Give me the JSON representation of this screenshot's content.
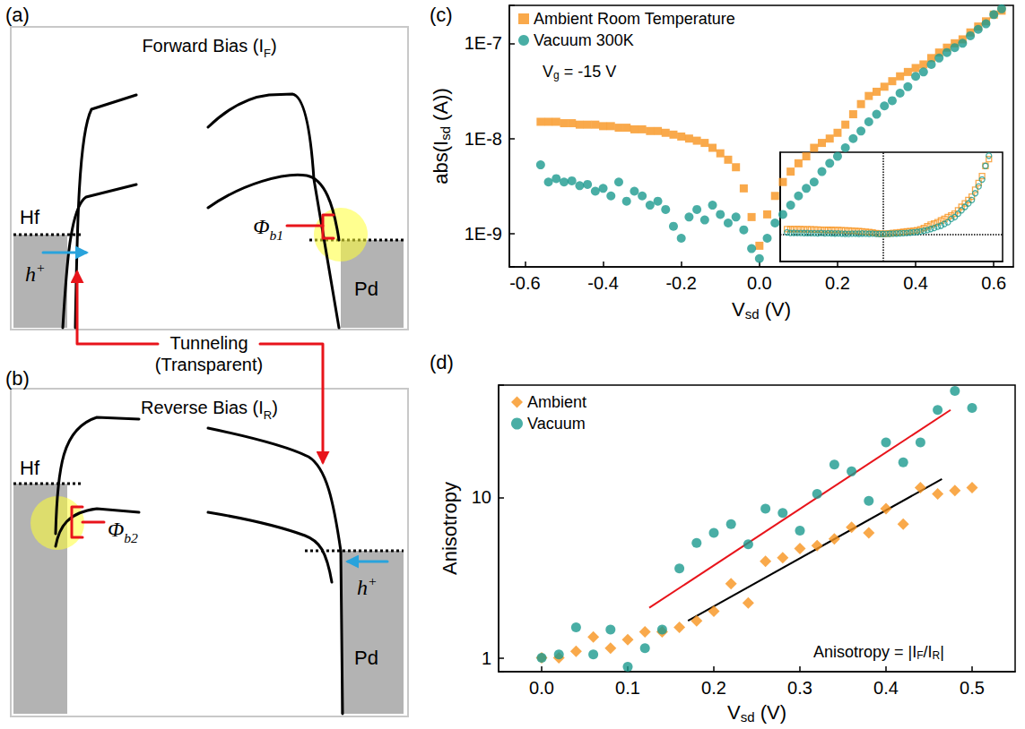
{
  "diagram": {
    "panels": [
      {
        "letter": "(a)",
        "title": [
          "Forward Bias (I",
          {
            "sub": "F"
          },
          ")"
        ],
        "left_metal": "Hf",
        "right_metal": "Pd",
        "carrier": [
          "h",
          {
            "sup": "+"
          }
        ],
        "barrier": [
          "Φ",
          {
            "sub": "b1"
          }
        ]
      },
      {
        "letter": "(b)",
        "title": [
          "Reverse Bias (I",
          {
            "sub": "R"
          },
          ")"
        ],
        "left_metal": "Hf",
        "right_metal": "Pd",
        "carrier": [
          "h",
          {
            "sup": "+"
          }
        ],
        "barrier": [
          "Φ",
          {
            "sub": "b2"
          }
        ]
      }
    ],
    "callout": [
      "Tunneling",
      "(Transparent)"
    ]
  },
  "chart_data": [
    {
      "panel": "(c)",
      "type": "scatter",
      "xlabel": [
        "V",
        {
          "sub": "sd"
        },
        " (V)"
      ],
      "ylabel": [
        "abs(I",
        {
          "sub": "sd"
        },
        " (A))"
      ],
      "annotations": [
        {
          "text": [
            "V",
            {
              "sub": "g"
            },
            " = -15 V"
          ]
        }
      ],
      "x": [
        -0.56,
        -0.54,
        -0.52,
        -0.5,
        -0.48,
        -0.46,
        -0.44,
        -0.42,
        -0.4,
        -0.38,
        -0.36,
        -0.34,
        -0.32,
        -0.3,
        -0.28,
        -0.26,
        -0.24,
        -0.22,
        -0.2,
        -0.18,
        -0.16,
        -0.14,
        -0.12,
        -0.1,
        -0.08,
        -0.06,
        -0.04,
        -0.02,
        0,
        0.02,
        0.04,
        0.06,
        0.08,
        0.1,
        0.12,
        0.14,
        0.16,
        0.18,
        0.2,
        0.22,
        0.24,
        0.26,
        0.28,
        0.3,
        0.32,
        0.34,
        0.36,
        0.38,
        0.4,
        0.42,
        0.44,
        0.46,
        0.48,
        0.5,
        0.52,
        0.54,
        0.56,
        0.58,
        0.6,
        0.62
      ],
      "series": [
        {
          "name": "Ambient Room Temperature",
          "color": "#f7931e",
          "marker": "square",
          "values": [
            1.5e-08,
            1.5e-08,
            1.5e-08,
            1.45e-08,
            1.45e-08,
            1.4e-08,
            1.4e-08,
            1.4e-08,
            1.35e-08,
            1.35e-08,
            1.3e-08,
            1.3e-08,
            1.25e-08,
            1.25e-08,
            1.2e-08,
            1.2e-08,
            1.15e-08,
            1.1e-08,
            1.05e-08,
            1e-08,
            9.5e-09,
            9e-09,
            8e-09,
            7e-09,
            6e-09,
            5e-09,
            3e-09,
            1.5e-09,
            7.5e-10,
            1.6e-09,
            2.5e-09,
            3.5e-09,
            4.5e-09,
            5.5e-09,
            6.5e-09,
            8e-09,
            9e-09,
            1e-08,
            1.15e-08,
            1.4e-08,
            1.8e-08,
            2.3e-08,
            2.8e-08,
            3.1e-08,
            3.5e-08,
            4e-08,
            4.5e-08,
            5e-08,
            5.5e-08,
            6e-08,
            7e-08,
            8e-08,
            9e-08,
            1e-07,
            1.1e-07,
            1.3e-07,
            1.5e-07,
            1.7e-07,
            2e-07,
            2.2e-07
          ]
        },
        {
          "name": "Vacuum 300K",
          "color": "#1b9a8e",
          "marker": "circle",
          "values": [
            5.3e-09,
            3.5e-09,
            3.8e-09,
            3.5e-09,
            3.6e-09,
            3.2e-09,
            3.3e-09,
            2.8e-09,
            3e-09,
            2.5e-09,
            3.5e-09,
            2.2e-09,
            2.8e-09,
            2.5e-09,
            2e-09,
            2.2e-09,
            1.8e-09,
            1.2e-09,
            9e-10,
            1.5e-09,
            1.8e-09,
            1.4e-09,
            2e-09,
            1.6e-09,
            1.3e-09,
            1.5e-09,
            1.1e-09,
            7e-10,
            5.5e-10,
            9e-10,
            1.3e-09,
            1.6e-09,
            2e-09,
            2.5e-09,
            3e-09,
            3.5e-09,
            4.5e-09,
            5.5e-09,
            6.5e-09,
            8e-09,
            1e-08,
            1.2e-08,
            1.5e-08,
            1.8e-08,
            2.2e-08,
            2.5e-08,
            3e-08,
            3.5e-08,
            4.5e-08,
            5e-08,
            6e-08,
            7e-08,
            8e-08,
            9e-08,
            1e-07,
            1.2e-07,
            1.4e-07,
            1.6e-07,
            2e-07,
            2.3e-07
          ]
        }
      ],
      "xlim": [
        -0.64,
        0.65
      ],
      "xticks": [
        -0.6,
        -0.4,
        -0.2,
        {
          "value": 0,
          "label": "0.0"
        },
        0.2,
        0.4,
        0.6
      ],
      "ylim": [
        4.5e-10,
        2.5e-07
      ],
      "yticks": [
        {
          "value": 1e-09,
          "label": "1E-9"
        },
        {
          "value": 1e-08,
          "label": "1E-8"
        },
        {
          "value": 1e-07,
          "label": "1E-7"
        }
      ],
      "log": "y",
      "grid": false,
      "legend": "upper left"
    },
    {
      "type": "scatter",
      "x": [
        -0.56,
        -0.54,
        -0.52,
        -0.5,
        -0.48,
        -0.46,
        -0.44,
        -0.42,
        -0.4,
        -0.38,
        -0.36,
        -0.34,
        -0.32,
        -0.3,
        -0.28,
        -0.26,
        -0.24,
        -0.22,
        -0.2,
        -0.18,
        -0.16,
        -0.14,
        -0.12,
        -0.1,
        -0.08,
        -0.06,
        -0.04,
        -0.02,
        0,
        0.02,
        0.04,
        0.06,
        0.08,
        0.1,
        0.12,
        0.14,
        0.16,
        0.18,
        0.2,
        0.22,
        0.24,
        0.26,
        0.28,
        0.3,
        0.32,
        0.34,
        0.36,
        0.38,
        0.4,
        0.42,
        0.44,
        0.46,
        0.48,
        0.5,
        0.52,
        0.54,
        0.56,
        0.58,
        0.6,
        0.62
      ],
      "series": [
        {
          "color": "#f7931e",
          "marker": "open_square",
          "values": [
            1.5e-08,
            1.5e-08,
            1.5e-08,
            1.45e-08,
            1.45e-08,
            1.4e-08,
            1.4e-08,
            1.4e-08,
            1.35e-08,
            1.35e-08,
            1.3e-08,
            1.3e-08,
            1.25e-08,
            1.25e-08,
            1.2e-08,
            1.2e-08,
            1.15e-08,
            1.1e-08,
            1.05e-08,
            1e-08,
            9.5e-09,
            9e-09,
            8e-09,
            7e-09,
            6e-09,
            5e-09,
            3e-09,
            1.5e-09,
            7.5e-10,
            1.6e-09,
            2.5e-09,
            3.5e-09,
            4.5e-09,
            5.5e-09,
            6.5e-09,
            8e-09,
            9e-09,
            1e-08,
            1.15e-08,
            1.4e-08,
            1.8e-08,
            2.3e-08,
            2.8e-08,
            3.1e-08,
            3.5e-08,
            4e-08,
            4.5e-08,
            5e-08,
            5.5e-08,
            6e-08,
            7e-08,
            8e-08,
            9e-08,
            1e-07,
            1.1e-07,
            1.3e-07,
            1.5e-07,
            1.7e-07,
            2e-07,
            2.2e-07
          ]
        },
        {
          "color": "#1b9a8e",
          "marker": "open_circle",
          "values": [
            5.3e-09,
            3.5e-09,
            3.8e-09,
            3.5e-09,
            3.6e-09,
            3.2e-09,
            3.3e-09,
            2.8e-09,
            3e-09,
            2.5e-09,
            3.5e-09,
            2.2e-09,
            2.8e-09,
            2.5e-09,
            2e-09,
            2.2e-09,
            1.8e-09,
            1.2e-09,
            9e-10,
            1.5e-09,
            1.8e-09,
            1.4e-09,
            2e-09,
            1.6e-09,
            1.3e-09,
            1.5e-09,
            1.1e-09,
            7e-10,
            5.5e-10,
            9e-10,
            1.3e-09,
            1.6e-09,
            2e-09,
            2.5e-09,
            3e-09,
            3.5e-09,
            4.5e-09,
            5.5e-09,
            6.5e-09,
            8e-09,
            1e-08,
            1.2e-08,
            1.5e-08,
            1.8e-08,
            2.2e-08,
            2.5e-08,
            3e-08,
            3.5e-08,
            4.5e-08,
            5e-08,
            6e-08,
            7e-08,
            8e-08,
            9e-08,
            1e-07,
            1.2e-07,
            1.4e-07,
            1.6e-07,
            2e-07,
            2.3e-07
          ]
        }
      ],
      "xlim": [
        -0.6,
        0.7
      ],
      "ylim": [
        -8e-08,
        2.4e-07
      ],
      "vline": 0,
      "hline": 0,
      "tick_labels": false,
      "grid": false
    },
    {
      "panel": "(d)",
      "type": "scatter",
      "xlabel": [
        "V",
        {
          "sub": "sd"
        },
        " (V)"
      ],
      "ylabel": [
        "Anisotropy"
      ],
      "annotations": [
        {
          "text": [
            "Anisotropy = |I",
            {
              "sub": "F"
            },
            "/I",
            {
              "sub": "R"
            },
            "|"
          ]
        }
      ],
      "x": [
        0,
        0.02,
        0.04,
        0.06,
        0.08,
        0.1,
        0.12,
        0.14,
        0.16,
        0.18,
        0.2,
        0.22,
        0.24,
        0.26,
        0.28,
        0.3,
        0.32,
        0.34,
        0.36,
        0.38,
        0.4,
        0.42,
        0.44,
        0.46,
        0.48,
        0.5
      ],
      "series": [
        {
          "name": "Ambient",
          "color": "#f7931e",
          "marker": "diamond",
          "values": [
            1,
            1,
            1.1,
            1.35,
            1.15,
            1.3,
            1.45,
            1.45,
            1.55,
            1.7,
            1.95,
            2.9,
            2.2,
            4,
            4.2,
            4.8,
            5,
            5.5,
            6.5,
            6,
            8.5,
            6.8,
            11.5,
            10.5,
            11,
            11.5
          ]
        },
        {
          "name": "Vacuum",
          "color": "#1b9a8e",
          "marker": "circle",
          "values": [
            1,
            1.05,
            1.55,
            1.05,
            1.5,
            0.88,
            1.15,
            1.5,
            3.6,
            5.2,
            6,
            6.8,
            5.1,
            8.5,
            8,
            6.2,
            10.5,
            16,
            14.5,
            9.5,
            22,
            16.5,
            22,
            35,
            46,
            36
          ]
        }
      ],
      "fit_lines": [
        {
          "color": "#e8141b",
          "x": [
            0.125,
            0.475
          ],
          "y": [
            2.05,
            35
          ]
        },
        {
          "color": "#000000",
          "x": [
            0.17,
            0.465
          ],
          "y": [
            1.7,
            13
          ]
        }
      ],
      "xlim": [
        -0.05,
        0.55
      ],
      "xticks": [
        {
          "value": 0,
          "label": "0.0"
        },
        0.1,
        0.2,
        0.3,
        0.4,
        0.5
      ],
      "ylim": [
        0.82,
        50
      ],
      "yticks": [
        1,
        10
      ],
      "log": "y",
      "grid": false,
      "legend": "upper left"
    }
  ]
}
